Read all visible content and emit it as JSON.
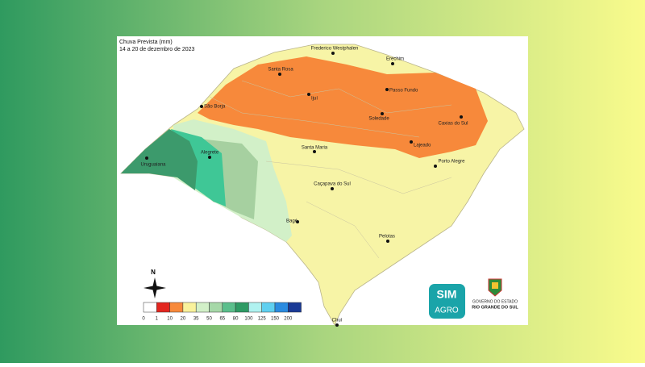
{
  "map": {
    "title": "Chuva Prevista (mm)",
    "subtitle": "14 a 20 de dezembro de 2023",
    "cities": [
      "Frederico Westphalen",
      "Erechim",
      "Santa Rosa",
      "Passo Fundo",
      "Ijuí",
      "São Borja",
      "Soledade",
      "Caxias do Sul",
      "Lajeado",
      "Alegrete",
      "Santa Maria",
      "Uruguaiana",
      "Porto Alegre",
      "Caçapava do Sul",
      "Bagé",
      "Pelotas",
      "Chuí"
    ],
    "north": "N",
    "legend": {
      "values": [
        0,
        1,
        10,
        20,
        35,
        50,
        65,
        80,
        100,
        125,
        150,
        200
      ],
      "colors": [
        "#ffffff",
        "#e3261f",
        "#f7893b",
        "#f9f29c",
        "#d2f0c8",
        "#a6d8a8",
        "#5bbf8c",
        "#2e9b64",
        "#b0f2f0",
        "#5fd0f0",
        "#2a8be0",
        "#1a3a96"
      ]
    },
    "logo": {
      "line1": "SIM",
      "line2": "AGRO"
    },
    "government": {
      "line1": "GOVERNO DO ESTADO",
      "line2": "RIO GRANDE DO SUL"
    }
  }
}
